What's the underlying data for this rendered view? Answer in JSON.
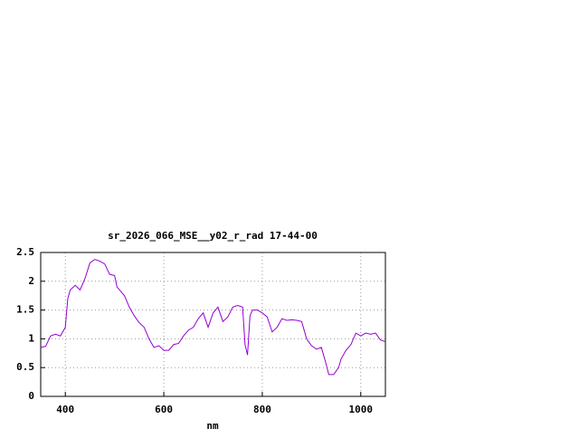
{
  "chart_data": {
    "type": "line",
    "title": "sr_2026_066_MSE__y02_r_rad 17-44-00",
    "x_label": "nm",
    "x": [
      350,
      360,
      370,
      380,
      390,
      400,
      405,
      410,
      420,
      430,
      440,
      450,
      460,
      470,
      480,
      490,
      500,
      505,
      520,
      530,
      540,
      550,
      560,
      570,
      580,
      590,
      600,
      610,
      620,
      630,
      640,
      650,
      660,
      670,
      680,
      690,
      700,
      710,
      720,
      730,
      740,
      750,
      760,
      765,
      770,
      775,
      780,
      790,
      800,
      810,
      820,
      830,
      840,
      850,
      860,
      870,
      880,
      890,
      900,
      910,
      920,
      930,
      935,
      945,
      955,
      960,
      970,
      980,
      990,
      1000,
      1010,
      1020,
      1030,
      1040,
      1050
    ],
    "series": [
      {
        "color": "#9400d3",
        "values": [
          0.85,
          0.87,
          1.05,
          1.08,
          1.05,
          1.2,
          1.7,
          1.85,
          1.93,
          1.85,
          2.05,
          2.32,
          2.38,
          2.35,
          2.3,
          2.12,
          2.1,
          1.9,
          1.75,
          1.55,
          1.4,
          1.28,
          1.2,
          1.0,
          0.85,
          0.88,
          0.8,
          0.8,
          0.9,
          0.92,
          1.05,
          1.15,
          1.2,
          1.35,
          1.45,
          1.2,
          1.45,
          1.55,
          1.3,
          1.38,
          1.55,
          1.58,
          1.55,
          0.9,
          0.72,
          1.4,
          1.5,
          1.5,
          1.45,
          1.38,
          1.12,
          1.2,
          1.35,
          1.32,
          1.33,
          1.32,
          1.3,
          1.0,
          0.88,
          0.82,
          0.85,
          0.55,
          0.38,
          0.38,
          0.5,
          0.65,
          0.8,
          0.9,
          1.1,
          1.05,
          1.1,
          1.08,
          1.1,
          0.98,
          0.95
        ]
      }
    ],
    "xlim": [
      350,
      1050
    ],
    "xticks": [
      400,
      600,
      800,
      1000
    ],
    "ylim": [
      0,
      2.5
    ],
    "yticks": [
      0,
      0.5,
      1,
      1.5,
      2,
      2.5
    ],
    "grid": true
  }
}
